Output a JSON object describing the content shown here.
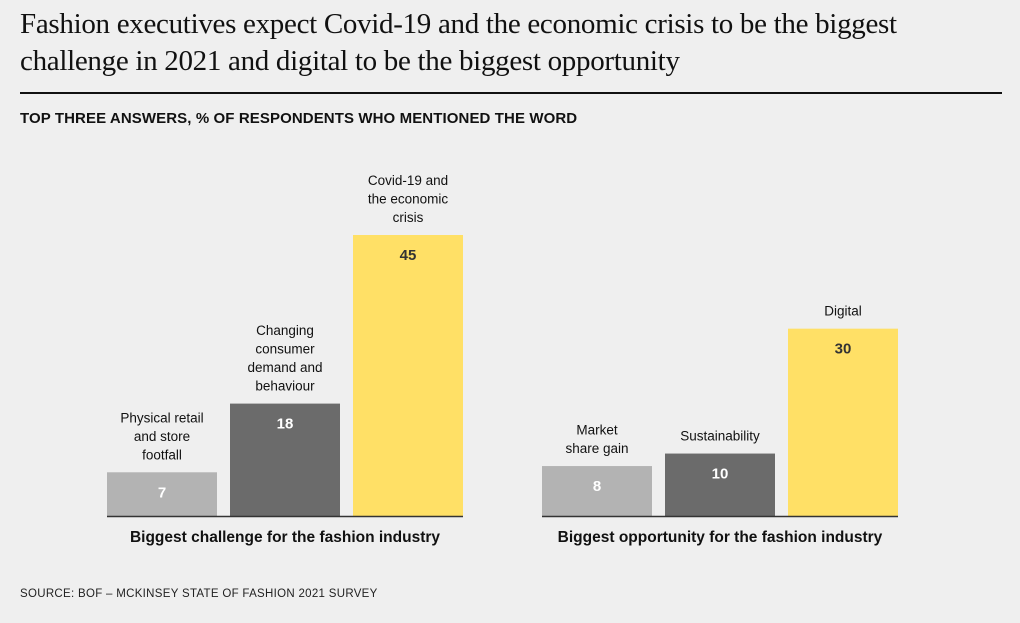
{
  "title": "Fashion executives expect Covid-19 and the economic crisis to be the biggest challenge in 2021 and digital to be the biggest opportunity",
  "subtitle": "TOP THREE ANSWERS, % OF RESPONDENTS WHO MENTIONED THE WORD",
  "source": "SOURCE: BOF – MCKINSEY STATE OF FASHION 2021 SURVEY",
  "colors": {
    "light_gray": "#b3b3b3",
    "dark_gray": "#6b6b6b",
    "yellow": "#ffe066",
    "value_on_gray": "#ffffff",
    "value_on_yellow": "#333333",
    "axis": "#333333"
  },
  "chart_data": {
    "type": "bar",
    "unit": "% of respondents",
    "ylim": [
      0,
      45
    ],
    "groups": [
      {
        "name": "Biggest challenge for the fashion industry",
        "bars": [
          {
            "label": [
              "Physical retail",
              "and store",
              "footfall"
            ],
            "value": 7,
            "color": "light_gray"
          },
          {
            "label": [
              "Changing",
              "consumer",
              "demand and",
              "behaviour"
            ],
            "value": 18,
            "color": "dark_gray"
          },
          {
            "label": [
              "Covid-19 and",
              "the economic",
              "crisis"
            ],
            "value": 45,
            "color": "yellow"
          }
        ]
      },
      {
        "name": "Biggest opportunity for the fashion industry",
        "bars": [
          {
            "label": [
              "Market",
              "share gain"
            ],
            "value": 8,
            "color": "light_gray"
          },
          {
            "label": [
              "Sustainability"
            ],
            "value": 10,
            "color": "dark_gray"
          },
          {
            "label": [
              "Digital"
            ],
            "value": 30,
            "color": "yellow"
          }
        ]
      }
    ]
  }
}
